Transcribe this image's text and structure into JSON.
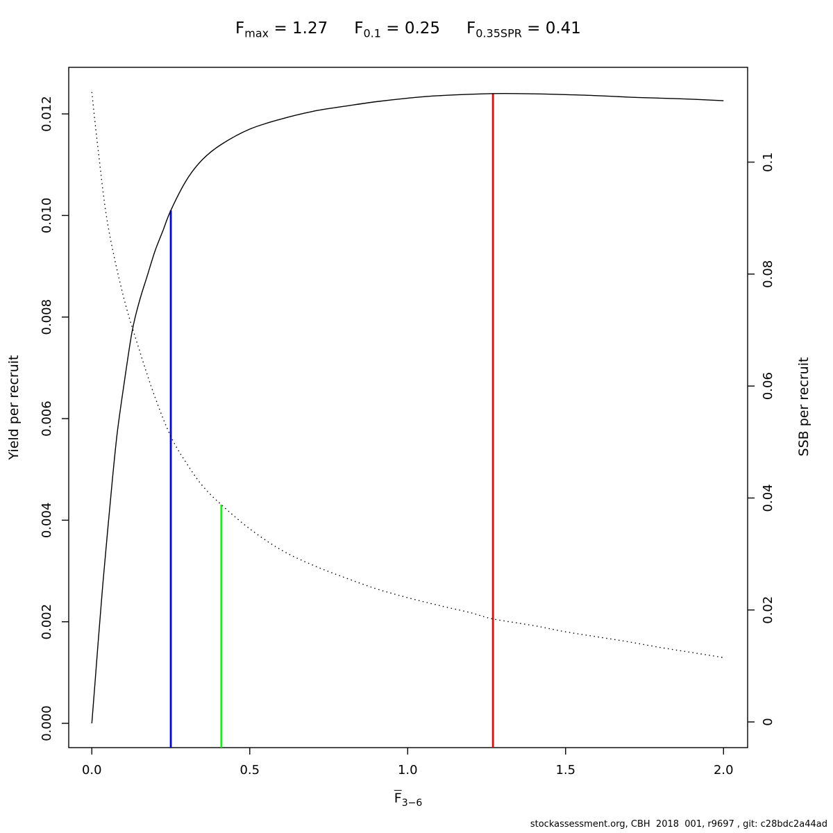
{
  "header": {
    "metrics": [
      {
        "name": "Fmax",
        "base": "F",
        "sub": "max",
        "rhs": "= 1.27"
      },
      {
        "name": "F0.1",
        "base": "F",
        "sub": "0.1",
        "rhs": "= 0.25"
      },
      {
        "name": "F0.35SPR",
        "base": "F",
        "sub": "0.35SPR",
        "rhs": "= 0.41"
      }
    ]
  },
  "chart_data": {
    "type": "line",
    "title": "Fmax = 1.27   F0.1 = 0.25   F0.35SPR = 0.41",
    "xlabel": {
      "base": "F",
      "overline": true,
      "sub": "3−6"
    },
    "grid": false,
    "xlim": [
      -0.0732,
      2.0763
    ],
    "x_ticks": {
      "values": [
        0.0,
        0.5,
        1.0,
        1.5,
        2.0
      ],
      "labels": [
        "0.0",
        "0.5",
        "1.0",
        "1.5",
        "2.0"
      ]
    },
    "left_axis": {
      "label": "Yield per recruit",
      "lim": [
        -0.000478,
        0.012917
      ],
      "ticks": {
        "values": [
          0.0,
          0.002,
          0.004,
          0.006,
          0.008,
          0.01,
          0.012
        ],
        "labels": [
          "0.000",
          "0.002",
          "0.004",
          "0.006",
          "0.008",
          "0.010",
          "0.012"
        ]
      }
    },
    "right_axis": {
      "label": "SSB per recruit",
      "lim": [
        -0.004588,
        0.11693
      ],
      "ticks": {
        "values": [
          0,
          0.02,
          0.04,
          0.06,
          0.08,
          0.1
        ],
        "labels": [
          "0",
          "0.02",
          "0.04",
          "0.06",
          "0.08",
          "0.1"
        ]
      }
    },
    "series": [
      {
        "name": "yield-per-recruit",
        "axis": "left",
        "style": "solid",
        "color": "#000000",
        "x": [
          0,
          0.01,
          0.02,
          0.035,
          0.05,
          0.065,
          0.08,
          0.1,
          0.127,
          0.15,
          0.175,
          0.2,
          0.225,
          0.25,
          0.3,
          0.35,
          0.41,
          0.5,
          0.6,
          0.7,
          0.8,
          0.9,
          1.0,
          1.1,
          1.27,
          1.4,
          1.5,
          1.6,
          1.7,
          1.8,
          1.9,
          2.0
        ],
        "y": [
          0,
          0.0008,
          0.0016,
          0.00275,
          0.0038,
          0.0048,
          0.0057,
          0.0066,
          0.0077,
          0.0083,
          0.0088,
          0.0093,
          0.0097,
          0.0101,
          0.0107,
          0.0111,
          0.0114,
          0.0117,
          0.0119,
          0.01205,
          0.01215,
          0.01224,
          0.01231,
          0.01236,
          0.0124,
          0.012395,
          0.01238,
          0.01236,
          0.01233,
          0.01231,
          0.01229,
          0.01226
        ]
      },
      {
        "name": "ssb-per-recruit",
        "axis": "right",
        "style": "dotted",
        "color": "#000000",
        "x": [
          0,
          0.02,
          0.05,
          0.1,
          0.15,
          0.2,
          0.25,
          0.3,
          0.35,
          0.41,
          0.5,
          0.6,
          0.7,
          0.8,
          0.9,
          1.0,
          1.1,
          1.2,
          1.27,
          1.4,
          1.5,
          1.6,
          1.7,
          1.8,
          1.9,
          2.0
        ],
        "y": [
          0.1125,
          0.1022,
          0.089,
          0.076,
          0.0665,
          0.058,
          0.051,
          0.0462,
          0.0422,
          0.0388,
          0.0345,
          0.0307,
          0.028,
          0.0258,
          0.0238,
          0.0222,
          0.0208,
          0.0195,
          0.0184,
          0.0172,
          0.0161,
          0.0152,
          0.0143,
          0.0133,
          0.0124,
          0.0115
        ]
      }
    ],
    "ref_lines": [
      {
        "name": "f01-line",
        "x": 0.25,
        "y_top": 0.0101,
        "axis": "left",
        "color": "#0000FF"
      },
      {
        "name": "f035spr-line",
        "x": 0.41,
        "y_top": 0.0388,
        "axis": "right",
        "color": "#00FF00"
      },
      {
        "name": "fmax-line",
        "x": 1.27,
        "y_top": 0.0124,
        "axis": "left",
        "color": "#FF0000"
      }
    ],
    "legend": null
  },
  "footer": {
    "text": "stockassessment.org, CBH  2018  001, r9697 , git: c28bdc2a44ad"
  }
}
